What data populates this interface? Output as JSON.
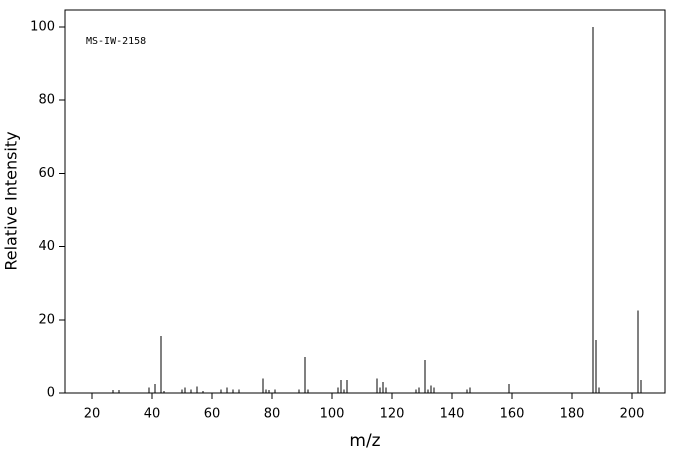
{
  "chart_data": {
    "type": "bar",
    "annotation": "MS-IW-2158",
    "xlabel": "m/z",
    "ylabel": "Relative Intensity",
    "x": [
      27,
      29,
      39,
      41,
      43,
      44,
      50,
      51,
      53,
      55,
      57,
      63,
      65,
      67,
      69,
      77,
      78,
      79,
      81,
      89,
      91,
      92,
      102,
      103,
      104,
      105,
      115,
      116,
      117,
      118,
      128,
      129,
      131,
      132,
      133,
      134,
      145,
      146,
      159,
      187,
      188,
      189,
      202,
      203
    ],
    "values": [
      0.8,
      0.8,
      1.5,
      2.5,
      15.5,
      0.5,
      1,
      1.5,
      1,
      1.8,
      0.5,
      1,
      1.5,
      1,
      1,
      4,
      1,
      0.8,
      1,
      1,
      9.8,
      1,
      1.5,
      3.5,
      1,
      3.5,
      4,
      1.5,
      3,
      1.5,
      1,
      1.5,
      9,
      1,
      2,
      1.5,
      1,
      1.5,
      2.5,
      100,
      14.5,
      1.5,
      22.5,
      3.5
    ],
    "color": "#000000",
    "xlim": [
      11,
      211
    ],
    "xticks": [
      20,
      40,
      60,
      80,
      100,
      120,
      140,
      160,
      180,
      200
    ],
    "ylim": [
      0,
      104.6
    ],
    "yticks": [
      0,
      20,
      40,
      60,
      80,
      100
    ]
  }
}
